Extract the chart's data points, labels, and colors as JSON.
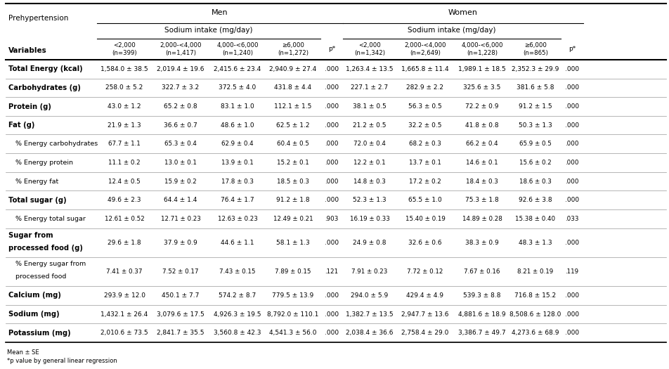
{
  "col_headers": {
    "men_label": "Men",
    "women_label": "Women",
    "sodium_label": "Sodium intake (mg/day)",
    "men_cols": [
      "<2,000\n(n=399)",
      "2,000-<4,000\n(n=1,417)",
      "4,000-<6,000\n(n=1,240)",
      "≥6,000\n(n=1,272)"
    ],
    "women_cols": [
      "<2,000\n(n=1,342)",
      "2,000-<4,000\n(n=2,649)",
      "4,000-<6,000\n(n=1,228)",
      "≥6,000\n(n=865)"
    ]
  },
  "rows": [
    {
      "label": "Total Energy (kcal)",
      "bold": true,
      "men": [
        "1,584.0 ± 38.5",
        "2,019.4 ± 19.6",
        "2,415.6 ± 23.4",
        "2,940.9 ± 27.4",
        ".000"
      ],
      "women": [
        "1,263.4 ± 13.5",
        "1,665.8 ± 11.4",
        "1,989.1 ± 18.5",
        "2,352.3 ± 29.9",
        ".000"
      ]
    },
    {
      "label": "Carbohydrates (g)",
      "bold": true,
      "men": [
        "258.0 ± 5.2",
        "322.7 ± 3.2",
        "372.5 ± 4.0",
        "431.8 ± 4.4",
        ".000"
      ],
      "women": [
        "227.1 ± 2.7",
        "282.9 ± 2.2",
        "325.6 ± 3.5",
        "381.6 ± 5.8",
        ".000"
      ]
    },
    {
      "label": "Protein (g)",
      "bold": true,
      "men": [
        "43.0 ± 1.2",
        "65.2 ± 0.8",
        "83.1 ± 1.0",
        "112.1 ± 1.5",
        ".000"
      ],
      "women": [
        "38.1 ± 0.5",
        "56.3 ± 0.5",
        "72.2 ± 0.9",
        "91.2 ± 1.5",
        ".000"
      ]
    },
    {
      "label": "Fat (g)",
      "bold": true,
      "men": [
        "21.9 ± 1.3",
        "36.6 ± 0.7",
        "48.6 ± 1.0",
        "62.5 ± 1.2",
        ".000"
      ],
      "women": [
        "21.2 ± 0.5",
        "32.2 ± 0.5",
        "41.8 ± 0.8",
        "50.3 ± 1.3",
        ".000"
      ]
    },
    {
      "label": "  % Energy carbohydrates",
      "bold": false,
      "men": [
        "67.7 ± 1.1",
        "65.3 ± 0.4",
        "62.9 ± 0.4",
        "60.4 ± 0.5",
        ".000"
      ],
      "women": [
        "72.0 ± 0.4",
        "68.2 ± 0.3",
        "66.2 ± 0.4",
        "65.9 ± 0.5",
        ".000"
      ]
    },
    {
      "label": "  % Energy protein",
      "bold": false,
      "men": [
        "11.1 ± 0.2",
        "13.0 ± 0.1",
        "13.9 ± 0.1",
        "15.2 ± 0.1",
        ".000"
      ],
      "women": [
        "12.2 ± 0.1",
        "13.7 ± 0.1",
        "14.6 ± 0.1",
        "15.6 ± 0.2",
        ".000"
      ]
    },
    {
      "label": "  % Energy fat",
      "bold": false,
      "men": [
        "12.4 ± 0.5",
        "15.9 ± 0.2",
        "17.8 ± 0.3",
        "18.5 ± 0.3",
        ".000"
      ],
      "women": [
        "14.8 ± 0.3",
        "17.2 ± 0.2",
        "18.4 ± 0.3",
        "18.6 ± 0.3",
        ".000"
      ]
    },
    {
      "label": "Total sugar (g)",
      "bold": true,
      "men": [
        "49.6 ± 2.3",
        "64.4 ± 1.4",
        "76.4 ± 1.7",
        "91.2 ± 1.8",
        ".000"
      ],
      "women": [
        "52.3 ± 1.3",
        "65.5 ± 1.0",
        "75.3 ± 1.8",
        "92.6 ± 3.8",
        ".000"
      ]
    },
    {
      "label": "  % Energy total sugar",
      "bold": false,
      "men": [
        "12.61 ± 0.52",
        "12.71 ± 0.23",
        "12.63 ± 0.23",
        "12.49 ± 0.21",
        ".903"
      ],
      "women": [
        "16.19 ± 0.33",
        "15.40 ± 0.19",
        "14.89 ± 0.28",
        "15.38 ± 0.40",
        ".033"
      ]
    },
    {
      "label": "Sugar from\nprocessed food (g)",
      "bold": true,
      "men": [
        "29.6 ± 1.8",
        "37.9 ± 0.9",
        "44.6 ± 1.1",
        "58.1 ± 1.3",
        ".000"
      ],
      "women": [
        "24.9 ± 0.8",
        "32.6 ± 0.6",
        "38.3 ± 0.9",
        "48.3 ± 1.3",
        ".000"
      ]
    },
    {
      "label": "  % Energy sugar from\n  processed food",
      "bold": false,
      "men": [
        "7.41 ± 0.37",
        "7.52 ± 0.17",
        "7.43 ± 0.15",
        "7.89 ± 0.15",
        ".121"
      ],
      "women": [
        "7.91 ± 0.23",
        "7.72 ± 0.12",
        "7.67 ± 0.16",
        "8.21 ± 0.19",
        ".119"
      ]
    },
    {
      "label": "Calcium (mg)",
      "bold": true,
      "men": [
        "293.9 ± 12.0",
        "450.1 ± 7.7",
        "574.2 ± 8.7",
        "779.5 ± 13.9",
        ".000"
      ],
      "women": [
        "294.0 ± 5.9",
        "429.4 ± 4.9",
        "539.3 ± 8.8",
        "716.8 ± 15.2",
        ".000"
      ]
    },
    {
      "label": "Sodium (mg)",
      "bold": true,
      "men": [
        "1,432.1 ± 26.4",
        "3,079.6 ± 17.5",
        "4,926.3 ± 19.5",
        "8,792.0 ± 110.1",
        ".000"
      ],
      "women": [
        "1,382.7 ± 13.5",
        "2,947.7 ± 13.6",
        "4,881.6 ± 18.9",
        "8,508.6 ± 128.0",
        ".000"
      ]
    },
    {
      "label": "Potassium (mg)",
      "bold": true,
      "men": [
        "2,010.6 ± 73.5",
        "2,841.7 ± 35.5",
        "3,560.8 ± 42.3",
        "4,541.3 ± 56.0",
        ".000"
      ],
      "women": [
        "2,038.4 ± 36.6",
        "2,758.4 ± 29.0",
        "3,386.7 ± 49.7",
        "4,273.6 ± 68.9",
        ".000"
      ]
    }
  ],
  "footnotes": [
    "Mean ± SE",
    "*p value by general linear regression"
  ],
  "bg_color": "#ffffff"
}
